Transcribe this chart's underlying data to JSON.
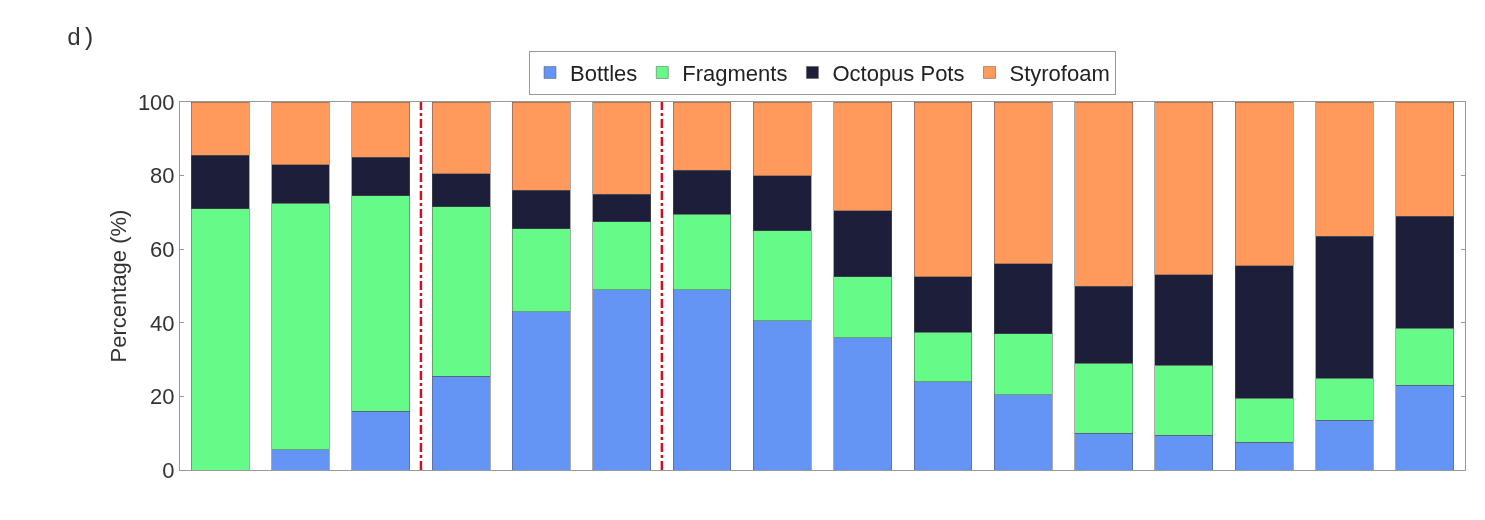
{
  "chart_data": {
    "type": "bar",
    "title": "d)",
    "ylabel": "Percentage (%)",
    "stacked": true,
    "categories": [
      null,
      null,
      null,
      null,
      null,
      null,
      null,
      null,
      null,
      null,
      null,
      null,
      null,
      null,
      null,
      null
    ],
    "series": [
      {
        "name": "Bottles",
        "color": "#6495f5",
        "values": [
          0,
          5.5,
          16,
          25.5,
          43,
          49,
          49,
          40.5,
          36,
          24,
          20.5,
          10,
          9.5,
          7.5,
          13.5,
          23
        ]
      },
      {
        "name": "Fragments",
        "color": "#66fa88",
        "values": [
          71,
          67,
          58.5,
          46,
          22.5,
          18.5,
          20.5,
          24.5,
          16.5,
          13.5,
          16.5,
          19,
          19,
          12,
          11.5,
          15.5
        ]
      },
      {
        "name": "Octopus Pots",
        "color": "#1c1e3a",
        "values": [
          14.5,
          10.5,
          10.5,
          9,
          10.5,
          7.5,
          12,
          15,
          18,
          15,
          19,
          21,
          24.5,
          36,
          38.5,
          30.5
        ]
      },
      {
        "name": "Styrofoam",
        "color": "#ff9a5c",
        "values": [
          14.5,
          17,
          15,
          19.5,
          24,
          25,
          18.5,
          20,
          29.5,
          47.5,
          44,
          50,
          47,
          44.5,
          36.5,
          31
        ]
      }
    ],
    "ylim": [
      0,
      100
    ],
    "yticks": [
      0,
      20,
      40,
      60,
      80,
      100
    ],
    "grid": false,
    "legend": "top"
  }
}
